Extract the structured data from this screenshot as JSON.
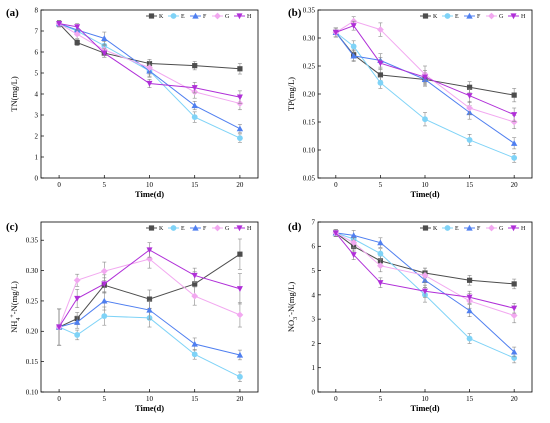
{
  "colors": {
    "K": "#4d4d4d",
    "E": "#7fd3f7",
    "F": "#4f7ff0",
    "G": "#f2a8f0",
    "H": "#b02fd8"
  },
  "chart_data": [
    {
      "type": "line",
      "panel": "(a)",
      "ylabel": "TN(mg/L)",
      "xlabel": "Time(d)",
      "x": [
        0,
        2,
        5,
        10,
        15,
        20
      ],
      "xticks": [
        "0",
        "5",
        "10",
        "15",
        "20"
      ],
      "xtick_values": [
        0,
        5,
        10,
        15,
        20
      ],
      "xlim": [
        -2,
        22
      ],
      "ylim": [
        0,
        8
      ],
      "yticks": [
        "0",
        "1",
        "2",
        "3",
        "4",
        "5",
        "6",
        "7",
        "8"
      ],
      "ytick_values": [
        0,
        1,
        2,
        3,
        4,
        5,
        6,
        7,
        8
      ],
      "legend": "top-right",
      "series": [
        {
          "name": "K",
          "values": [
            7.35,
            6.45,
            5.95,
            5.45,
            5.35,
            5.2
          ],
          "err": [
            0.15,
            0.15,
            0.2,
            0.2,
            0.2,
            0.25
          ]
        },
        {
          "name": "E",
          "values": [
            7.35,
            7.0,
            6.3,
            5.1,
            2.9,
            1.9
          ],
          "err": [
            0.15,
            0.2,
            0.2,
            0.3,
            0.25,
            0.2
          ]
        },
        {
          "name": "F",
          "values": [
            7.35,
            7.05,
            6.65,
            5.1,
            3.45,
            2.35
          ],
          "err": [
            0.15,
            0.2,
            0.3,
            0.25,
            0.2,
            0.2
          ]
        },
        {
          "name": "G",
          "values": [
            7.35,
            6.85,
            6.1,
            5.25,
            4.1,
            3.55
          ],
          "err": [
            0.15,
            0.2,
            0.2,
            0.3,
            0.3,
            0.3
          ]
        },
        {
          "name": "H",
          "values": [
            7.35,
            7.2,
            5.95,
            4.5,
            4.3,
            3.85
          ],
          "err": [
            0.15,
            0.15,
            0.2,
            0.2,
            0.25,
            0.3
          ]
        }
      ]
    },
    {
      "type": "line",
      "panel": "(b)",
      "ylabel": "TP(mg/L)",
      "xlabel": "Time(d)",
      "x": [
        0,
        2,
        5,
        10,
        15,
        20
      ],
      "xticks": [
        "0",
        "5",
        "10",
        "15",
        "20"
      ],
      "xtick_values": [
        0,
        5,
        10,
        15,
        20
      ],
      "xlim": [
        -2,
        22
      ],
      "ylim": [
        0.05,
        0.35
      ],
      "yticks": [
        "0.05",
        "0.10",
        "0.15",
        "0.20",
        "0.25",
        "0.30",
        "0.35"
      ],
      "ytick_values": [
        0.05,
        0.1,
        0.15,
        0.2,
        0.25,
        0.3,
        0.35
      ],
      "legend": "top-right",
      "series": [
        {
          "name": "K",
          "values": [
            0.31,
            0.27,
            0.234,
            0.226,
            0.212,
            0.198
          ],
          "err": [
            0.008,
            0.01,
            0.01,
            0.01,
            0.01,
            0.012
          ]
        },
        {
          "name": "E",
          "values": [
            0.31,
            0.285,
            0.22,
            0.155,
            0.118,
            0.086
          ],
          "err": [
            0.008,
            0.01,
            0.01,
            0.012,
            0.01,
            0.008
          ]
        },
        {
          "name": "F",
          "values": [
            0.31,
            0.268,
            0.26,
            0.226,
            0.167,
            0.112
          ],
          "err": [
            0.008,
            0.01,
            0.012,
            0.012,
            0.012,
            0.01
          ]
        },
        {
          "name": "G",
          "values": [
            0.31,
            0.33,
            0.315,
            0.235,
            0.175,
            0.15
          ],
          "err": [
            0.008,
            0.008,
            0.012,
            0.015,
            0.012,
            0.012
          ]
        },
        {
          "name": "H",
          "values": [
            0.31,
            0.322,
            0.255,
            0.23,
            0.197,
            0.163
          ],
          "err": [
            0.008,
            0.008,
            0.01,
            0.012,
            0.012,
            0.012
          ]
        }
      ]
    },
    {
      "type": "line",
      "panel": "(c)",
      "ylabel": "NH4+-N(mg/L)",
      "ylabel_parts": {
        "base": "NH",
        "sub": "4",
        "sup": "+",
        "rest": "-N(mg/L)"
      },
      "xlabel": "Time(d)",
      "x": [
        0,
        2,
        5,
        10,
        15,
        20
      ],
      "xticks": [
        "0",
        "5",
        "10",
        "15",
        "20"
      ],
      "xtick_values": [
        0,
        5,
        10,
        15,
        20
      ],
      "xlim": [
        -2,
        22
      ],
      "ylim": [
        0.1,
        0.38
      ],
      "yticks": [
        "0.10",
        "0.15",
        "0.20",
        "0.25",
        "0.30",
        "0.35"
      ],
      "ytick_values": [
        0.1,
        0.15,
        0.2,
        0.25,
        0.3,
        0.35
      ],
      "legend": "top-right",
      "series": [
        {
          "name": "K",
          "values": [
            0.207,
            0.221,
            0.276,
            0.253,
            0.278,
            0.327
          ],
          "err": [
            0.03,
            0.01,
            0.012,
            0.015,
            0.02,
            0.025
          ]
        },
        {
          "name": "E",
          "values": [
            0.207,
            0.194,
            0.225,
            0.222,
            0.162,
            0.125
          ],
          "err": [
            0.03,
            0.008,
            0.015,
            0.015,
            0.008,
            0.008
          ]
        },
        {
          "name": "F",
          "values": [
            0.207,
            0.215,
            0.25,
            0.235,
            0.179,
            0.161
          ],
          "err": [
            0.03,
            0.01,
            0.015,
            0.015,
            0.01,
            0.008
          ]
        },
        {
          "name": "G",
          "values": [
            0.207,
            0.284,
            0.299,
            0.319,
            0.258,
            0.227
          ],
          "err": [
            0.03,
            0.01,
            0.015,
            0.015,
            0.015,
            0.02
          ]
        },
        {
          "name": "H",
          "values": [
            0.207,
            0.254,
            0.278,
            0.334,
            0.292,
            0.27
          ],
          "err": [
            0.03,
            0.015,
            0.015,
            0.012,
            0.012,
            0.025
          ]
        }
      ]
    },
    {
      "type": "line",
      "panel": "(d)",
      "ylabel": "NO3--N(mg/L)",
      "ylabel_parts": {
        "base": "NO",
        "sub": "3",
        "sup": "-",
        "rest": "-N(mg/L)"
      },
      "xlabel": "Time(d)",
      "x": [
        0,
        2,
        5,
        10,
        15,
        20
      ],
      "xticks": [
        "0",
        "5",
        "10",
        "15",
        "20"
      ],
      "xtick_values": [
        0,
        5,
        10,
        15,
        20
      ],
      "xlim": [
        -2,
        22
      ],
      "ylim": [
        0,
        7
      ],
      "yticks": [
        "0",
        "1",
        "2",
        "3",
        "4",
        "5",
        "6",
        "7"
      ],
      "ytick_values": [
        0,
        1,
        2,
        3,
        4,
        5,
        6,
        7
      ],
      "legend": "top-right",
      "series": [
        {
          "name": "K",
          "values": [
            6.55,
            6.0,
            5.4,
            4.9,
            4.6,
            4.45
          ],
          "err": [
            0.15,
            0.2,
            0.2,
            0.2,
            0.2,
            0.2
          ]
        },
        {
          "name": "E",
          "values": [
            6.55,
            6.3,
            5.7,
            4.0,
            2.2,
            1.4
          ],
          "err": [
            0.15,
            0.15,
            0.2,
            0.3,
            0.2,
            0.2
          ]
        },
        {
          "name": "F",
          "values": [
            6.55,
            6.45,
            6.15,
            4.6,
            3.35,
            1.65
          ],
          "err": [
            0.15,
            0.2,
            0.2,
            0.3,
            0.25,
            0.2
          ]
        },
        {
          "name": "G",
          "values": [
            6.55,
            6.15,
            5.2,
            4.8,
            3.75,
            3.15
          ],
          "err": [
            0.15,
            0.2,
            0.25,
            0.3,
            0.3,
            0.3
          ]
        },
        {
          "name": "H",
          "values": [
            6.55,
            5.65,
            4.5,
            4.15,
            3.9,
            3.45
          ],
          "err": [
            0.15,
            0.2,
            0.2,
            0.25,
            0.25,
            0.2
          ]
        }
      ]
    }
  ]
}
